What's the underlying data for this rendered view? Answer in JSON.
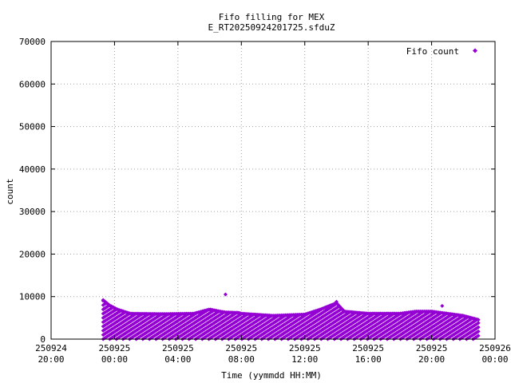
{
  "chart_data": {
    "type": "scatter",
    "title": "Fifo filling for MEX",
    "subtitle": "E_RT20250924201725.sfduZ",
    "xlabel": "Time (yymmdd HH:MM)",
    "ylabel": "count",
    "xlim": [
      "2025-09-24 20:00",
      "2025-09-26 00:00"
    ],
    "ylim": [
      0,
      70000
    ],
    "yticks": [
      "0",
      "10000",
      "20000",
      "30000",
      "40000",
      "50000",
      "60000",
      "70000"
    ],
    "xticks": [
      {
        "date": "250924",
        "time": "20:00"
      },
      {
        "date": "250925",
        "time": "00:00"
      },
      {
        "date": "250925",
        "time": "04:00"
      },
      {
        "date": "250925",
        "time": "08:00"
      },
      {
        "date": "250925",
        "time": "12:00"
      },
      {
        "date": "250925",
        "time": "16:00"
      },
      {
        "date": "250925",
        "time": "20:00"
      },
      {
        "date": "250926",
        "time": "00:00"
      }
    ],
    "grid": true,
    "legend": {
      "position": "top-right",
      "entries": [
        "Fifo count"
      ]
    },
    "series": [
      {
        "name": "Fifo count",
        "color": "#9400d3",
        "marker": "diamond",
        "pattern": "sawtooth bands from 0 up to the envelope, values stepping up by about 1000",
        "envelope": [
          {
            "t": "2025-09-24 23:17",
            "y": 9200
          },
          {
            "t": "2025-09-24 23:40",
            "y": 8000
          },
          {
            "t": "2025-09-25 00:10",
            "y": 7000
          },
          {
            "t": "2025-09-25 01:00",
            "y": 6000
          },
          {
            "t": "2025-09-25 03:00",
            "y": 5900
          },
          {
            "t": "2025-09-25 05:00",
            "y": 6000
          },
          {
            "t": "2025-09-25 06:00",
            "y": 7000
          },
          {
            "t": "2025-09-25 06:40",
            "y": 6500
          },
          {
            "t": "2025-09-25 07:00",
            "y": 6300
          },
          {
            "t": "2025-09-25 07:50",
            "y": 6200
          },
          {
            "t": "2025-09-25 08:00",
            "y": 6000
          },
          {
            "t": "2025-09-25 10:00",
            "y": 5500
          },
          {
            "t": "2025-09-25 12:00",
            "y": 5800
          },
          {
            "t": "2025-09-25 13:00",
            "y": 7000
          },
          {
            "t": "2025-09-25 14:00",
            "y": 8500
          },
          {
            "t": "2025-09-25 14:30",
            "y": 6500
          },
          {
            "t": "2025-09-25 16:00",
            "y": 6000
          },
          {
            "t": "2025-09-25 18:00",
            "y": 6000
          },
          {
            "t": "2025-09-25 19:00",
            "y": 6500
          },
          {
            "t": "2025-09-25 20:00",
            "y": 6500
          },
          {
            "t": "2025-09-25 22:00",
            "y": 5500
          },
          {
            "t": "2025-09-25 23:00",
            "y": 4500
          }
        ],
        "outliers": [
          {
            "t": "2025-09-25 07:00",
            "y": 10500
          },
          {
            "t": "2025-09-25 14:00",
            "y": 8800
          },
          {
            "t": "2025-09-25 20:40",
            "y": 7800
          }
        ]
      }
    ]
  }
}
